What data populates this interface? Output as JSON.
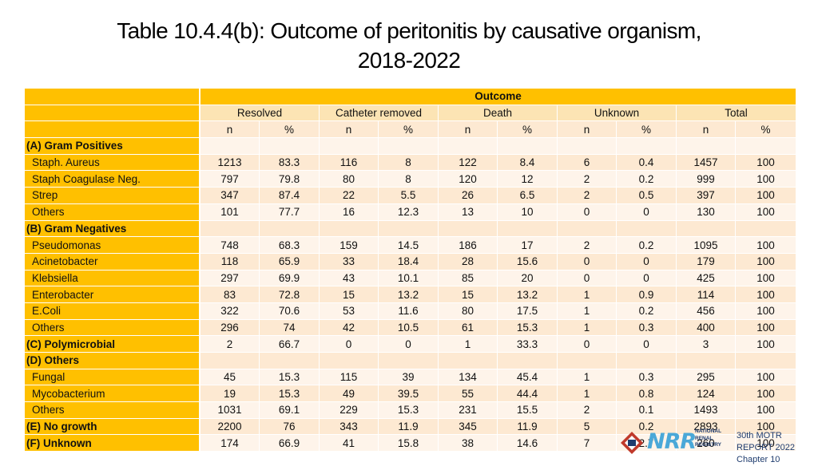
{
  "title_line1": "Table 10.4.4(b): Outcome of peritonitis by causative organism,",
  "title_line2": "2018-2022",
  "outcome_label": "Outcome",
  "groups": [
    "Resolved",
    "Catheter removed",
    "Death",
    "Unknown",
    "Total"
  ],
  "subheaders": [
    "n",
    "%",
    "n",
    "%",
    "n",
    "%",
    "n",
    "%",
    "n",
    "%"
  ],
  "rows": [
    {
      "label": "(A) Gram Positives",
      "type": "grp",
      "values": [
        "",
        "",
        "",
        "",
        "",
        "",
        "",
        "",
        "",
        ""
      ]
    },
    {
      "label": "Staph. Aureus",
      "type": "sub",
      "values": [
        "1213",
        "83.3",
        "116",
        "8",
        "122",
        "8.4",
        "6",
        "0.4",
        "1457",
        "100"
      ]
    },
    {
      "label": "Staph Coagulase Neg.",
      "type": "sub",
      "values": [
        "797",
        "79.8",
        "80",
        "8",
        "120",
        "12",
        "2",
        "0.2",
        "999",
        "100"
      ]
    },
    {
      "label": "Strep",
      "type": "sub",
      "values": [
        "347",
        "87.4",
        "22",
        "5.5",
        "26",
        "6.5",
        "2",
        "0.5",
        "397",
        "100"
      ]
    },
    {
      "label": "Others",
      "type": "sub",
      "values": [
        "101",
        "77.7",
        "16",
        "12.3",
        "13",
        "10",
        "0",
        "0",
        "130",
        "100"
      ]
    },
    {
      "label": "(B) Gram Negatives",
      "type": "grp",
      "values": [
        "",
        "",
        "",
        "",
        "",
        "",
        "",
        "",
        "",
        ""
      ]
    },
    {
      "label": "Pseudomonas",
      "type": "sub",
      "values": [
        "748",
        "68.3",
        "159",
        "14.5",
        "186",
        "17",
        "2",
        "0.2",
        "1095",
        "100"
      ]
    },
    {
      "label": "Acinetobacter",
      "type": "sub",
      "values": [
        "118",
        "65.9",
        "33",
        "18.4",
        "28",
        "15.6",
        "0",
        "0",
        "179",
        "100"
      ]
    },
    {
      "label": "Klebsiella",
      "type": "sub",
      "values": [
        "297",
        "69.9",
        "43",
        "10.1",
        "85",
        "20",
        "0",
        "0",
        "425",
        "100"
      ]
    },
    {
      "label": "Enterobacter",
      "type": "sub",
      "values": [
        "83",
        "72.8",
        "15",
        "13.2",
        "15",
        "13.2",
        "1",
        "0.9",
        "114",
        "100"
      ]
    },
    {
      "label": "E.Coli",
      "type": "sub",
      "values": [
        "322",
        "70.6",
        "53",
        "11.6",
        "80",
        "17.5",
        "1",
        "0.2",
        "456",
        "100"
      ]
    },
    {
      "label": "Others",
      "type": "sub",
      "values": [
        "296",
        "74",
        "42",
        "10.5",
        "61",
        "15.3",
        "1",
        "0.3",
        "400",
        "100"
      ]
    },
    {
      "label": "(C) Polymicrobial",
      "type": "grp",
      "values": [
        "2",
        "66.7",
        "0",
        "0",
        "1",
        "33.3",
        "0",
        "0",
        "3",
        "100"
      ]
    },
    {
      "label": "(D) Others",
      "type": "grp",
      "values": [
        "",
        "",
        "",
        "",
        "",
        "",
        "",
        "",
        "",
        ""
      ]
    },
    {
      "label": "Fungal",
      "type": "sub",
      "values": [
        "45",
        "15.3",
        "115",
        "39",
        "134",
        "45.4",
        "1",
        "0.3",
        "295",
        "100"
      ]
    },
    {
      "label": "Mycobacterium",
      "type": "sub",
      "values": [
        "19",
        "15.3",
        "49",
        "39.5",
        "55",
        "44.4",
        "1",
        "0.8",
        "124",
        "100"
      ]
    },
    {
      "label": "Others",
      "type": "sub",
      "values": [
        "1031",
        "69.1",
        "229",
        "15.3",
        "231",
        "15.5",
        "2",
        "0.1",
        "1493",
        "100"
      ]
    },
    {
      "label": "(E) No growth",
      "type": "grp",
      "values": [
        "2200",
        "76",
        "343",
        "11.9",
        "345",
        "11.9",
        "5",
        "0.2",
        "2893",
        "100"
      ]
    },
    {
      "label": "(F) Unknown",
      "type": "grp",
      "values": [
        "174",
        "66.9",
        "41",
        "15.8",
        "38",
        "14.6",
        "7",
        "2.7",
        "260",
        "100"
      ]
    }
  ],
  "footer": {
    "logo_text": "NRR",
    "logo_sub": [
      "NATIONAL",
      "RENAL",
      "REGISTRY"
    ],
    "report_line1": "30th MOTR REPORT 2022",
    "report_line2": "Chapter 10"
  },
  "colors": {
    "label_column": "#ffc000",
    "band_dark": "#fde9d2",
    "band_light": "#fef4ea",
    "header_light": "#fce4b4",
    "logo_blue": "#4aa8d8",
    "navy": "#1f3c6e"
  }
}
